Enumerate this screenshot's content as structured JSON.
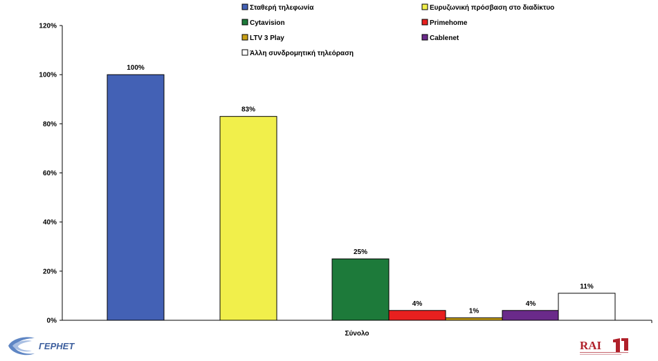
{
  "chart_data": {
    "type": "bar",
    "categories": [
      "Σύνολο"
    ],
    "series": [
      {
        "name": "Σταθερή τηλεφωνία",
        "values": [
          100
        ],
        "label": "100%",
        "color": "#4361b5"
      },
      {
        "name": "Ευρυζωνική πρόσβαση στο διαδίκτυο",
        "values": [
          83
        ],
        "label": "83%",
        "color": "#f1ef4b"
      },
      {
        "name": "Cytavision",
        "values": [
          25
        ],
        "label": "25%",
        "color": "#1d7a3a"
      },
      {
        "name": "Primehome",
        "values": [
          4
        ],
        "label": "4%",
        "color": "#e8201f"
      },
      {
        "name": "LTV 3 Play",
        "values": [
          1
        ],
        "label": "1%",
        "color": "#c8a018"
      },
      {
        "name": "Cablenet",
        "values": [
          4
        ],
        "label": "4%",
        "color": "#6a2a8a"
      },
      {
        "name": "Άλλη συνδρομητική τηλεόραση",
        "values": [
          11
        ],
        "label": "11%",
        "color": "#ffffff"
      }
    ],
    "yticks": [
      "0%",
      "20%",
      "40%",
      "60%",
      "80%",
      "100%",
      "120%"
    ],
    "ylim": [
      0,
      120
    ],
    "legend_position": "top"
  },
  "logos": {
    "left": "ΓΕΡΗΕΤ",
    "right": "RAI"
  }
}
